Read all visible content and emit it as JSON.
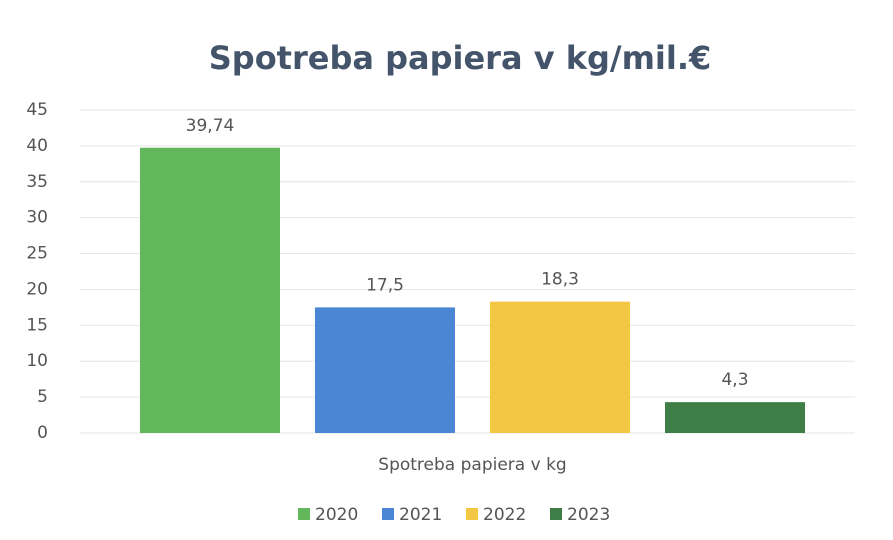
{
  "chart_data": {
    "type": "bar",
    "title": "Spotreba papiera v kg/mil.€",
    "categories": [
      "Spotreba papiera v kg"
    ],
    "series": [
      {
        "name": "2020",
        "color": "#62b75a",
        "values": [
          39.74
        ],
        "value_labels": [
          "39,74"
        ]
      },
      {
        "name": "2021",
        "color": "#4a86d4",
        "values": [
          17.5
        ],
        "value_labels": [
          "17,5"
        ]
      },
      {
        "name": "2022",
        "color": "#f3c643",
        "values": [
          18.3
        ],
        "value_labels": [
          "18,3"
        ]
      },
      {
        "name": "2023",
        "color": "#3f7f47",
        "values": [
          4.3
        ],
        "value_labels": [
          "4,3"
        ]
      }
    ],
    "ylim": [
      0,
      45
    ],
    "yticks": [
      0,
      5,
      10,
      15,
      20,
      25,
      30,
      35,
      40,
      45
    ],
    "grid": true,
    "legend": "bottom"
  }
}
